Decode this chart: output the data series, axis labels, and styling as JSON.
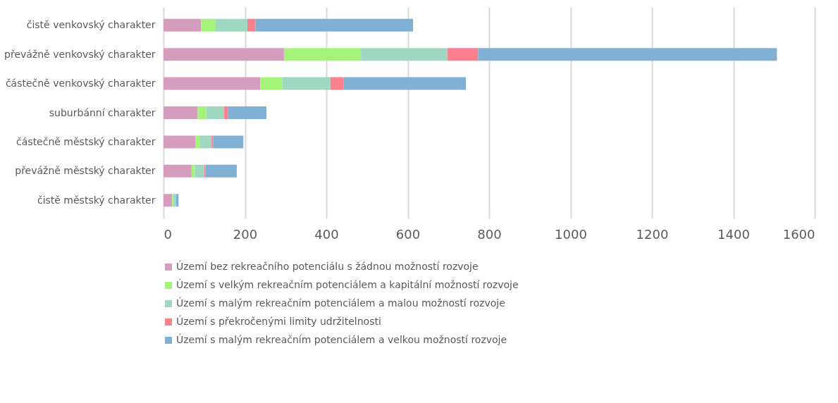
{
  "chart_data": {
    "type": "bar",
    "orientation": "horizontal",
    "stacked": true,
    "categories": [
      "čistě venkovský charakter",
      "převážně venkovský charakter",
      "částečně venkovský charakter",
      "suburbánní charakter",
      "částečně městský charakter",
      "převážně městský charakter",
      "čistě městský charakter"
    ],
    "series": [
      {
        "name": "Území bez rekreačního potenciálu s žádnou možností rozvoje",
        "color": "#d59dbd",
        "values": [
          92,
          296,
          238,
          84,
          78,
          69,
          21
        ]
      },
      {
        "name": "Území s velkým rekreačním potenciálem a kapitální možností rozvoje",
        "color": "#a5f47a",
        "values": [
          36,
          189,
          54,
          21,
          12,
          8,
          3
        ]
      },
      {
        "name": "Území s malým rekreačním potenciálem a malou možností rozvoje",
        "color": "#9fd7c1",
        "values": [
          78,
          212,
          118,
          44,
          28,
          23,
          7
        ]
      },
      {
        "name": "Území s překročenými limity udržitelnosti",
        "color": "#fb818e",
        "values": [
          20,
          76,
          32,
          10,
          4,
          3,
          null
        ]
      },
      {
        "name": "Území s malým rekreačním potenciálem a velkou možností rozvoje",
        "color": "#80b0d3",
        "values": [
          387,
          734,
          301,
          94,
          74,
          77,
          6
        ]
      }
    ],
    "xlim": [
      0,
      1600
    ],
    "xticks": [
      0,
      200,
      400,
      600,
      800,
      1000,
      1200,
      1400,
      1600
    ],
    "grid": "x",
    "legend": "bottom"
  }
}
